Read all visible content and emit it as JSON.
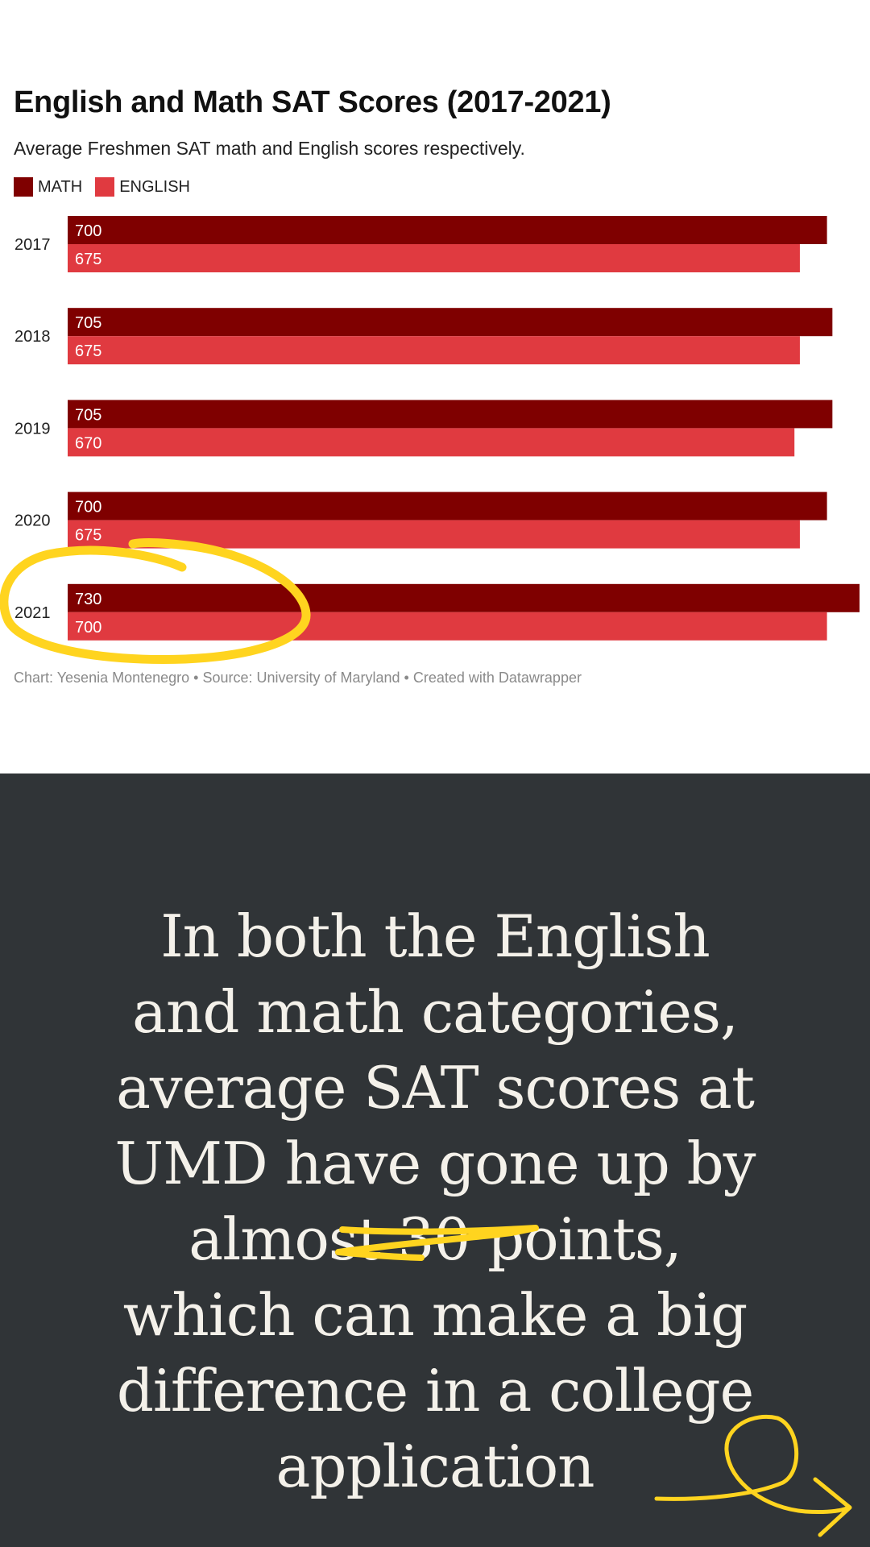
{
  "chart_data": {
    "type": "bar",
    "orientation": "horizontal",
    "title": "English and Math SAT Scores (2017-2021)",
    "subtitle": "Average Freshmen SAT math and English scores respectively.",
    "categories": [
      "2017",
      "2018",
      "2019",
      "2020",
      "2021"
    ],
    "series": [
      {
        "name": "MATH",
        "color": "#7f0000",
        "values": [
          700,
          705,
          705,
          700,
          730
        ]
      },
      {
        "name": "ENGLISH",
        "color": "#e03a40",
        "values": [
          675,
          675,
          670,
          675,
          700
        ]
      }
    ],
    "xlim": [
      0,
      730
    ],
    "grid": false,
    "legend": "top-left",
    "footer": "Chart: Yesenia Montenegro • Source: University of Maryland • Created with Datawrapper"
  },
  "quote": {
    "lines": [
      "In both the English",
      "and math categories,",
      "average SAT scores at",
      "UMD have gone up by",
      "almost 30 points,",
      "which can make a big",
      "difference in a college",
      "application"
    ],
    "background": "#303437",
    "text_color": "#f4f1ea"
  },
  "annotations": {
    "color": "#ffd41f",
    "items": [
      "circle-2021",
      "underline-30-points",
      "swirl-arrow"
    ]
  }
}
